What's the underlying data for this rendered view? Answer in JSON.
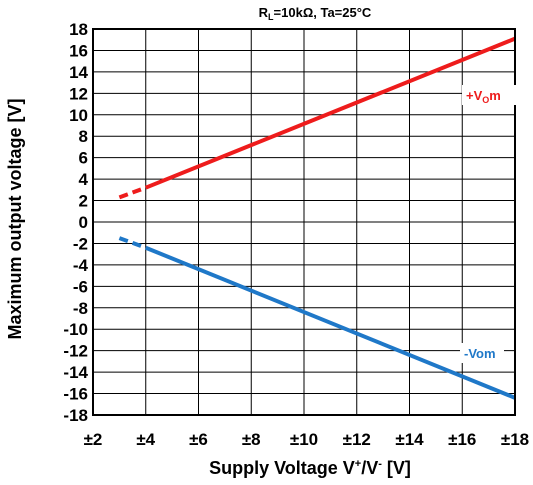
{
  "chart_data": {
    "type": "line",
    "condition": {
      "r": "R",
      "r_sub": "L",
      "rest": "=10kΩ, Ta=25°C"
    },
    "xlabel": {
      "main": "Supply Voltage V",
      "sup1": "+",
      "mid": "/V",
      "sup2": "-",
      "unit": " [V]"
    },
    "ylabel": "Maximum output voltage [V]",
    "xlim": [
      2,
      18
    ],
    "ylim": [
      -18,
      18
    ],
    "grid": true,
    "x_ticks": [
      2,
      4,
      6,
      8,
      10,
      12,
      14,
      16,
      18
    ],
    "x_tick_labels": [
      "±2",
      "±4",
      "±6",
      "±8",
      "±10",
      "±12",
      "±14",
      "±16",
      "±18"
    ],
    "y_ticks": [
      18,
      16,
      14,
      12,
      10,
      8,
      6,
      4,
      2,
      0,
      -2,
      -4,
      -6,
      -8,
      -10,
      -12,
      -14,
      -16,
      -18
    ],
    "y_tick_labels": [
      "18",
      "16",
      "14",
      "12",
      "10",
      "8",
      "6",
      "4",
      "2",
      "0",
      "-2",
      "-4",
      "-6",
      "-8",
      "-10",
      "-12",
      "-14",
      "-16",
      "-18"
    ],
    "series": [
      {
        "label": {
          "main": "+V",
          "sub": "O",
          "rest": "m"
        },
        "color": "#ee1c1c",
        "dashed": {
          "x": [
            3,
            4
          ],
          "y": [
            2.3,
            3.2
          ]
        },
        "solid": {
          "x": [
            4,
            18
          ],
          "y": [
            3.2,
            17.1
          ]
        }
      },
      {
        "label": {
          "main": "-Vom"
        },
        "color": "#1f78c8",
        "dashed": {
          "x": [
            3,
            4
          ],
          "y": [
            -1.5,
            -2.4
          ]
        },
        "solid": {
          "x": [
            4,
            18
          ],
          "y": [
            -2.4,
            -16.4
          ]
        }
      }
    ]
  }
}
